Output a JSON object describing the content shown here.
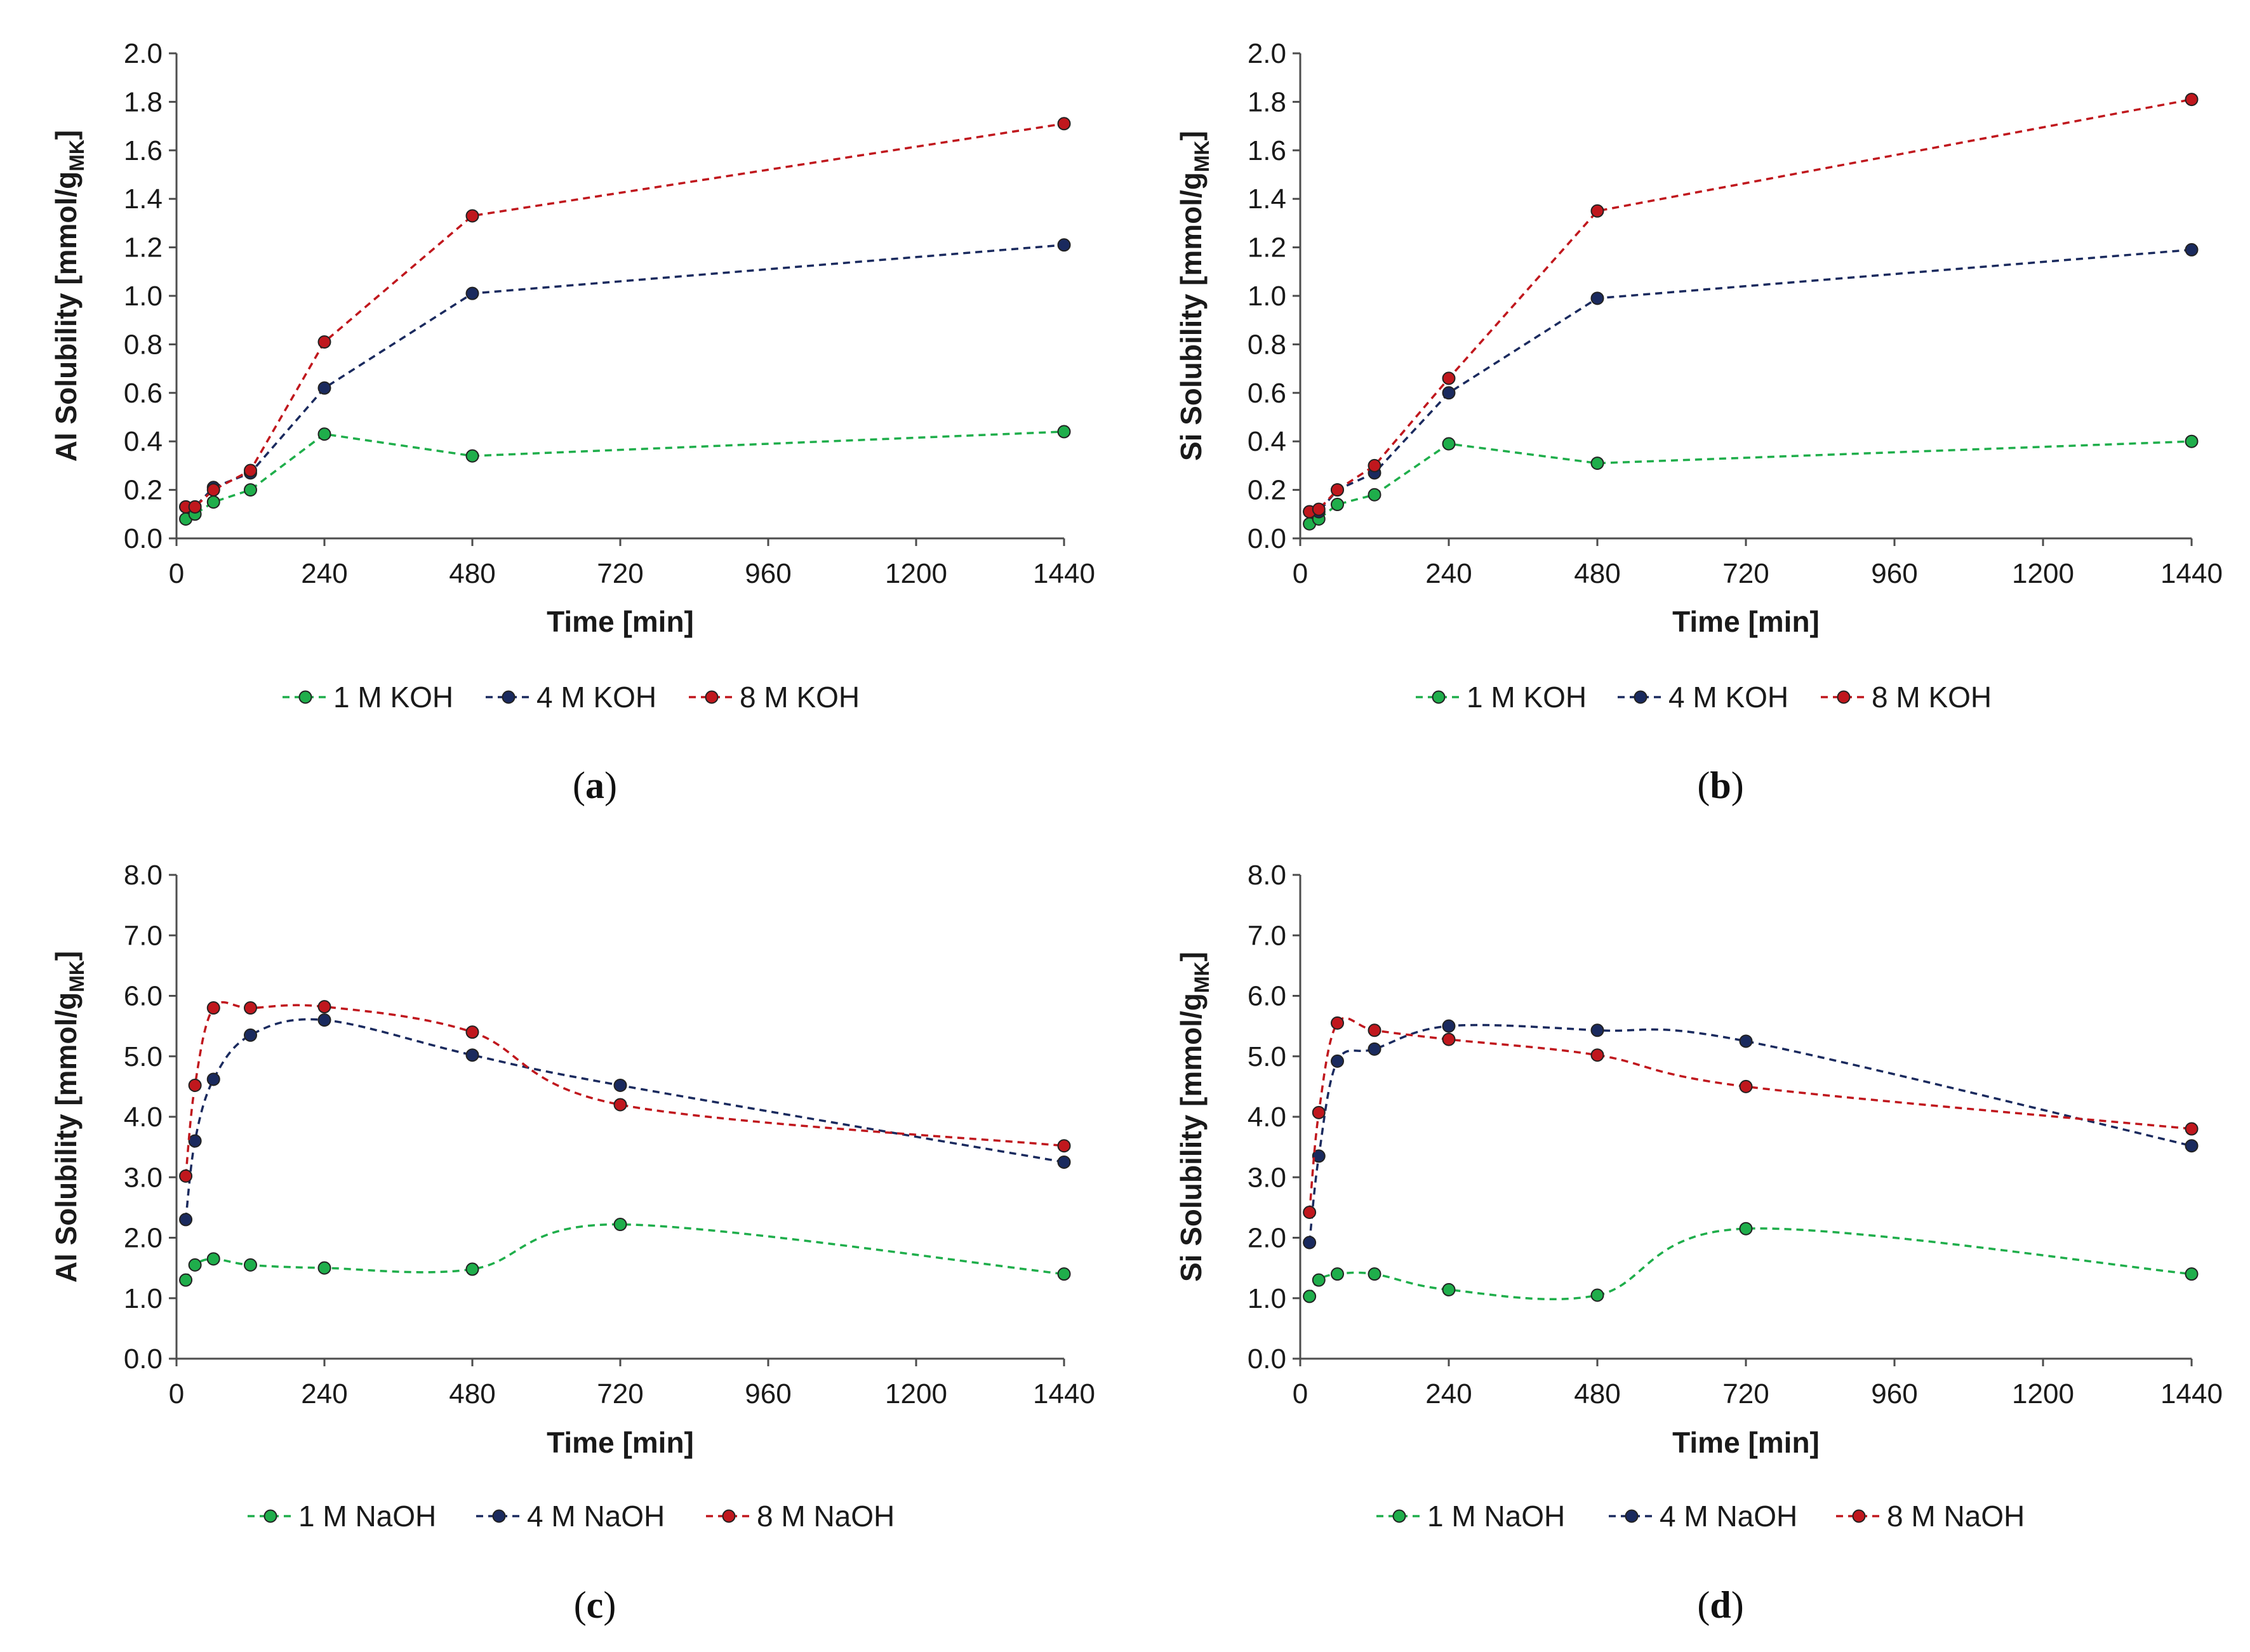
{
  "colors": {
    "1M": "#1fae4b",
    "4M": "#1a2a5e",
    "8M": "#c0171d",
    "axis": "#4d4d4d",
    "text": "#1a1a1a"
  },
  "chart_data": [
    {
      "id": "a",
      "caption": "(a)",
      "type": "line",
      "smooth": false,
      "ylabel": "Al Solubility [mmol/g",
      "ylabel_sub": "MK",
      "ylabel_close": "]",
      "xlabel": "Time [min]",
      "ylim": [
        0,
        2.0
      ],
      "yticks": [
        "0.0",
        "0.2",
        "0.4",
        "0.6",
        "0.8",
        "1.0",
        "1.2",
        "1.4",
        "1.6",
        "1.8",
        "2.0"
      ],
      "xlim": [
        0,
        1440
      ],
      "xticks": [
        "0",
        "240",
        "480",
        "720",
        "960",
        "1200",
        "1440"
      ],
      "legend_position": "bottom",
      "series": [
        {
          "name": "1 M KOH",
          "color_key": "1M",
          "x": [
            15,
            30,
            60,
            120,
            240,
            480,
            1440
          ],
          "y": [
            0.08,
            0.1,
            0.15,
            0.2,
            0.43,
            0.34,
            0.44
          ]
        },
        {
          "name": "4 M KOH",
          "color_key": "4M",
          "x": [
            15,
            30,
            60,
            120,
            240,
            480,
            1440
          ],
          "y": [
            0.13,
            0.13,
            0.21,
            0.27,
            0.62,
            1.01,
            1.21
          ]
        },
        {
          "name": "8 M KOH",
          "color_key": "8M",
          "x": [
            15,
            30,
            60,
            120,
            240,
            480,
            1440
          ],
          "y": [
            0.13,
            0.13,
            0.2,
            0.28,
            0.81,
            1.33,
            1.71
          ]
        }
      ]
    },
    {
      "id": "b",
      "caption": "(b)",
      "type": "line",
      "smooth": false,
      "ylabel": "Si Solubility [mmol/g",
      "ylabel_sub": "MK",
      "ylabel_close": "]",
      "xlabel": "Time [min]",
      "ylim": [
        0,
        2.0
      ],
      "yticks": [
        "0.0",
        "0.2",
        "0.4",
        "0.6",
        "0.8",
        "1.0",
        "1.2",
        "1.4",
        "1.6",
        "1.8",
        "2.0"
      ],
      "xlim": [
        0,
        1440
      ],
      "xticks": [
        "0",
        "240",
        "480",
        "720",
        "960",
        "1200",
        "1440"
      ],
      "legend_position": "bottom",
      "series": [
        {
          "name": "1 M KOH",
          "color_key": "1M",
          "x": [
            15,
            30,
            60,
            120,
            240,
            480,
            1440
          ],
          "y": [
            0.06,
            0.08,
            0.14,
            0.18,
            0.39,
            0.31,
            0.4
          ]
        },
        {
          "name": "4 M KOH",
          "color_key": "4M",
          "x": [
            15,
            30,
            60,
            120,
            240,
            480,
            1440
          ],
          "y": [
            0.11,
            0.11,
            0.2,
            0.27,
            0.6,
            0.99,
            1.19
          ]
        },
        {
          "name": "8 M KOH",
          "color_key": "8M",
          "x": [
            15,
            30,
            60,
            120,
            240,
            480,
            1440
          ],
          "y": [
            0.11,
            0.12,
            0.2,
            0.3,
            0.66,
            1.35,
            1.81
          ]
        }
      ]
    },
    {
      "id": "c",
      "caption": "(c)",
      "type": "line",
      "smooth": true,
      "ylabel": "Al Solubility [mmol/g",
      "ylabel_sub": "MK",
      "ylabel_close": "]",
      "xlabel": "Time [min]",
      "ylim": [
        0,
        8.0
      ],
      "yticks": [
        "0.0",
        "1.0",
        "2.0",
        "3.0",
        "4.0",
        "5.0",
        "6.0",
        "7.0",
        "8.0"
      ],
      "xlim": [
        0,
        1440
      ],
      "xticks": [
        "0",
        "240",
        "480",
        "720",
        "960",
        "1200",
        "1440"
      ],
      "legend_position": "bottom",
      "series": [
        {
          "name": "1 M NaOH",
          "color_key": "1M",
          "x": [
            15,
            30,
            60,
            120,
            240,
            480,
            720,
            1440
          ],
          "y": [
            1.3,
            1.55,
            1.65,
            1.55,
            1.5,
            1.48,
            2.22,
            1.4
          ]
        },
        {
          "name": "4 M NaOH",
          "color_key": "4M",
          "x": [
            15,
            30,
            60,
            120,
            240,
            480,
            720,
            1440
          ],
          "y": [
            2.3,
            3.6,
            4.62,
            5.35,
            5.6,
            5.02,
            4.52,
            3.25
          ]
        },
        {
          "name": "8 M NaOH",
          "color_key": "8M",
          "x": [
            15,
            30,
            60,
            120,
            240,
            480,
            720,
            1440
          ],
          "y": [
            3.02,
            4.52,
            5.8,
            5.8,
            5.82,
            5.4,
            4.2,
            3.52
          ]
        }
      ]
    },
    {
      "id": "d",
      "caption": "(d)",
      "type": "line",
      "smooth": true,
      "ylabel": "Si Solubility [mmol/g",
      "ylabel_sub": "MK",
      "ylabel_close": "]",
      "xlabel": "Time [min]",
      "ylim": [
        0,
        8.0
      ],
      "yticks": [
        "0.0",
        "1.0",
        "2.0",
        "3.0",
        "4.0",
        "5.0",
        "6.0",
        "7.0",
        "8.0"
      ],
      "xlim": [
        0,
        1440
      ],
      "xticks": [
        "0",
        "240",
        "480",
        "720",
        "960",
        "1200",
        "1440"
      ],
      "legend_position": "bottom",
      "series": [
        {
          "name": "1 M NaOH",
          "color_key": "1M",
          "x": [
            15,
            30,
            60,
            120,
            240,
            480,
            720,
            1440
          ],
          "y": [
            1.03,
            1.3,
            1.4,
            1.4,
            1.14,
            1.05,
            2.15,
            1.4
          ]
        },
        {
          "name": "4 M NaOH",
          "color_key": "4M",
          "x": [
            15,
            30,
            60,
            120,
            240,
            480,
            720,
            1440
          ],
          "y": [
            1.92,
            3.35,
            4.92,
            5.12,
            5.5,
            5.43,
            5.25,
            3.52
          ]
        },
        {
          "name": "8 M NaOH",
          "color_key": "8M",
          "x": [
            15,
            30,
            60,
            120,
            240,
            480,
            720,
            1440
          ],
          "y": [
            2.42,
            4.07,
            5.55,
            5.43,
            5.28,
            5.02,
            4.5,
            3.8
          ]
        }
      ]
    }
  ]
}
